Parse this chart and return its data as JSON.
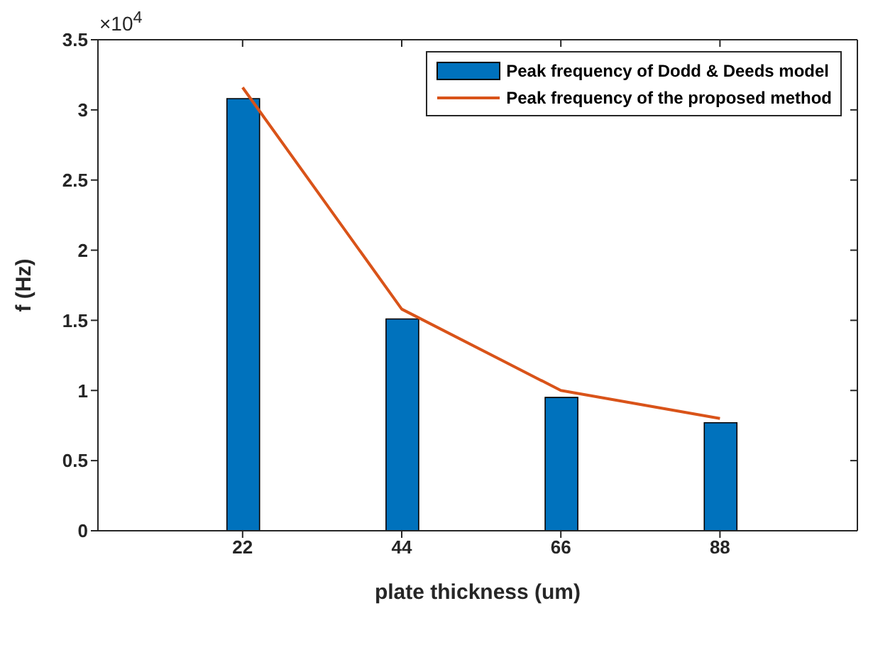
{
  "chart_data": {
    "type": "bar",
    "xlabel": "plate thickness (um)",
    "ylabel": "f (Hz)",
    "annotations": [
      "×10$^{4}$"
    ],
    "x": [
      22,
      44,
      66,
      88
    ],
    "xlim": [
      2,
      107
    ],
    "xticks": [
      22,
      44,
      66,
      88
    ],
    "ylim": [
      0,
      3.5
    ],
    "yticks": [
      0,
      0.5,
      1,
      1.5,
      2,
      2.5,
      3,
      3.5
    ],
    "series": [
      {
        "name": "Peak frequency of Dodd & Deeds model",
        "color": "#0072bd",
        "values": [
          3.08,
          1.51,
          0.95,
          0.77
        ]
      },
      {
        "name": "Peak frequency of the proposed method",
        "type": "line",
        "color": "#d95319",
        "values": [
          3.16,
          1.58,
          1.0,
          0.8
        ]
      }
    ],
    "legend": "top right"
  }
}
